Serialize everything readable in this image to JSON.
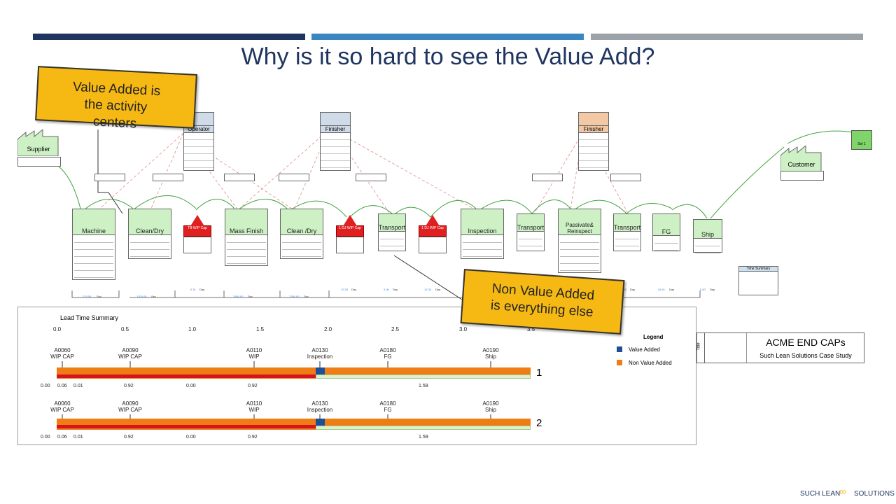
{
  "slide": {
    "title": "Why is it so hard to see the Value Add?",
    "colors": {
      "bar1": "#1f3560",
      "bar2": "#3a86c0",
      "bar3": "#9ca3a8",
      "green": "#cdf0c4",
      "wip": "#e02020",
      "orange": "#f07c14",
      "blue": "#1d4f99",
      "callout": "#f6b913"
    }
  },
  "callouts": {
    "value_added": "Value Added is the activity centers",
    "non_value_added": "Non Value Added is everything else"
  },
  "vsm": {
    "supplier": "Supplier",
    "customer": "Customer",
    "operator": "Operator",
    "finisher1": "Finisher",
    "finisher2": "Finisher",
    "processes": [
      "Machine",
      "Clean/Dry",
      "Mass Finish",
      "Clean /Dry",
      "Inspection",
      "Passivate& Reinspect",
      "FG",
      "Ship"
    ],
    "transports": [
      "Transport",
      "Transport",
      "Transport"
    ],
    "wip": [
      "TB WIP Cap",
      "1 DJ WIP Cap",
      "1 DJ WIP Cap"
    ],
    "sel": "Sel 1",
    "timeline": [
      "215.00",
      "Sec",
      "1200.00",
      "Sec",
      "0.31",
      "Day",
      "1500.00",
      "Sec",
      "1200.00",
      "Sec",
      "12.30",
      "Day",
      "0.00",
      "Day",
      "12.30",
      "Day",
      "20.00",
      "Day",
      "49.41",
      "Day",
      "0.00",
      "Day"
    ],
    "time_summary": "Time Summary"
  },
  "lead_time": {
    "title": "Lead Time Summary",
    "axis": [
      "0.0",
      "0.5",
      "1.0",
      "1.5",
      "2.0",
      "2.5",
      "3.0",
      "3.5"
    ],
    "markers": [
      {
        "code": "A0060",
        "name": "WIP CAP"
      },
      {
        "code": "A0090",
        "name": "WIP CAP"
      },
      {
        "code": "A0110",
        "name": "WIP"
      },
      {
        "code": "A0130",
        "name": "Inspection"
      },
      {
        "code": "A0180",
        "name": "FG"
      },
      {
        "code": "A0190",
        "name": "Ship"
      }
    ],
    "values": [
      "0.00",
      "0.06",
      "0.01",
      "0.92",
      "0.00",
      "0.92",
      "1.59"
    ],
    "rows": [
      "1",
      "2"
    ],
    "legend": {
      "title": "Legend",
      "items": [
        {
          "label": "Value Added",
          "color": "#1d4f99"
        },
        {
          "label": "Non Value Added",
          "color": "#f07c14"
        }
      ]
    }
  },
  "title_block": {
    "side": "Title",
    "company": "ACME END CAPs",
    "subtitle": "Such Lean Solutions Case Study"
  },
  "footer": {
    "brand_left": "SUCH LEAN",
    "brand_right": "SOLUTIONS"
  }
}
